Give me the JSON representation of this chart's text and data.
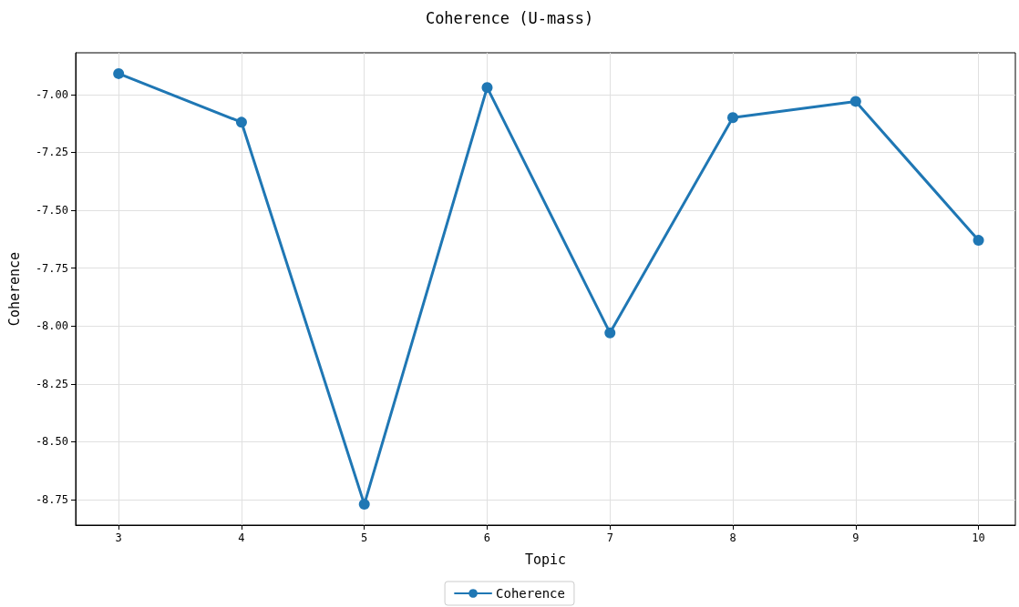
{
  "chart_data": {
    "type": "line",
    "title": "Coherence (U-mass)",
    "xlabel": "Topic",
    "ylabel": "Coherence",
    "x": [
      3,
      4,
      5,
      6,
      7,
      8,
      9,
      10
    ],
    "series": [
      {
        "name": "Coherence",
        "color": "#1f77b4",
        "values": [
          -6.91,
          -7.12,
          -8.77,
          -6.97,
          -8.03,
          -7.1,
          -7.03,
          -7.63
        ]
      }
    ],
    "xlim": [
      2.65,
      10.3
    ],
    "xticks": [
      3,
      4,
      5,
      6,
      7,
      8,
      9,
      10
    ],
    "ylim": [
      -8.86,
      -6.82
    ],
    "yticks": [
      {
        "value": -8.75,
        "label": "-8.75"
      },
      {
        "value": -8.5,
        "label": "-8.50"
      },
      {
        "value": -8.25,
        "label": "-8.25"
      },
      {
        "value": -8,
        "label": "-8.00"
      },
      {
        "value": -7.75,
        "label": "-7.75"
      },
      {
        "value": -7.5,
        "label": "-7.50"
      },
      {
        "value": -7.25,
        "label": "-7.25"
      },
      {
        "value": -7,
        "label": "-7.00"
      }
    ],
    "grid": true,
    "legend": "bottom",
    "marker": "circle",
    "line_style": "solid"
  }
}
